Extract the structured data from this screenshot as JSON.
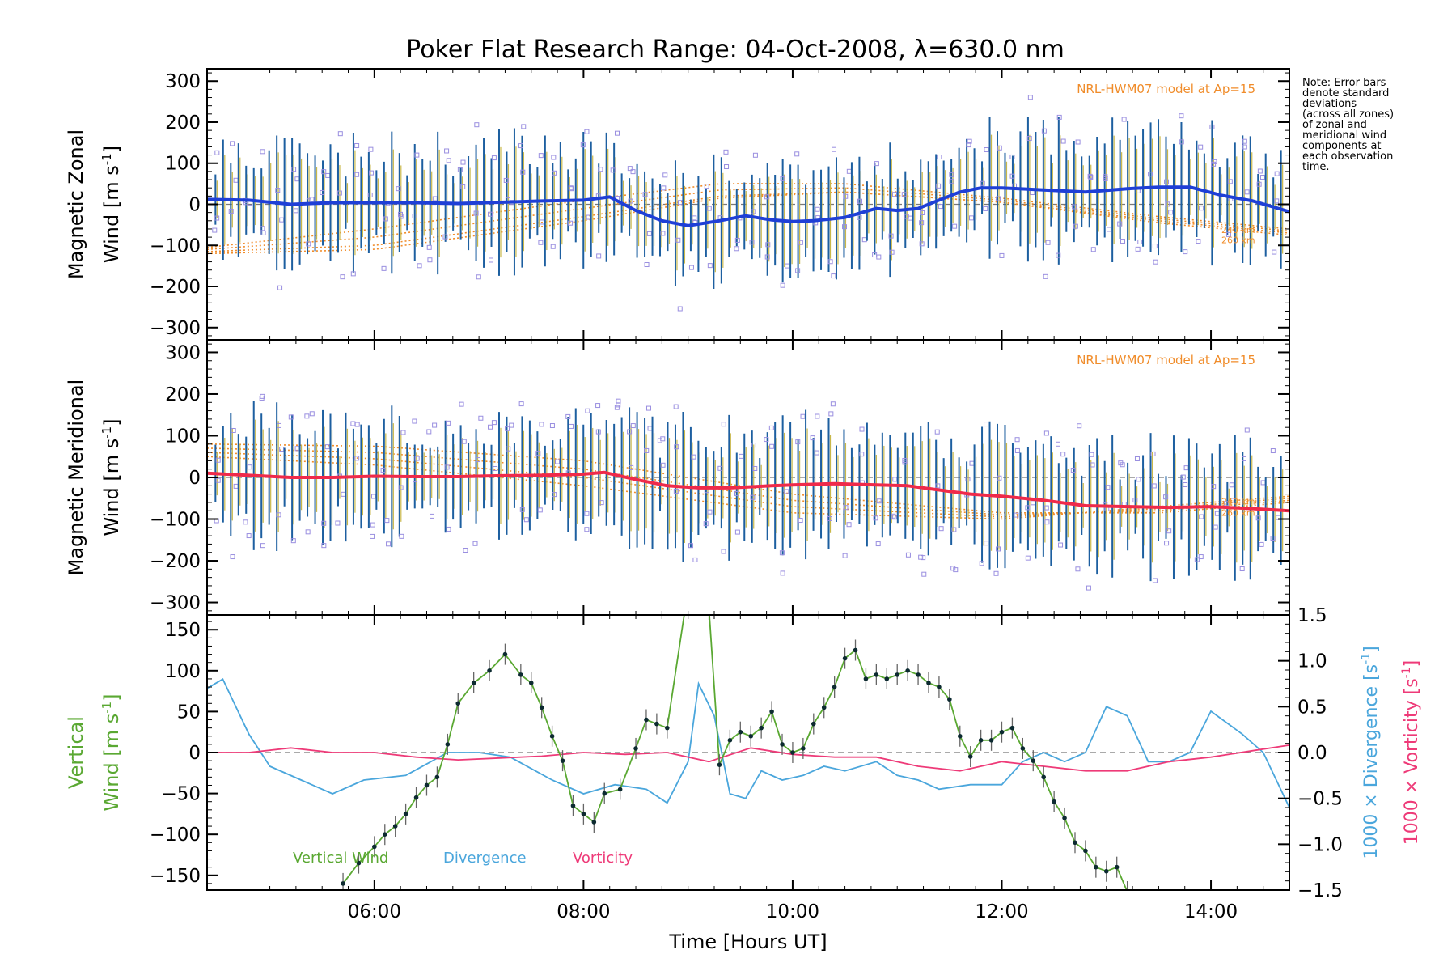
{
  "title": "Poker Flat Research Range: 04-Oct-2008, λ=630.0 nm",
  "note_lines": [
    "Note: Error bars",
    "denote standard",
    "deviations",
    "(across all zones)",
    "of zonal and",
    "meridional wind",
    "components at",
    "each observation",
    "time."
  ],
  "colors": {
    "zonal_line": "#1f3fd6",
    "zonal_fit": "#4fa4dc",
    "meridional_line": "#ef2a4a",
    "meridional_fit": "#ff6b8a",
    "error_bar": "#1d5fa0",
    "model": "#f08c2a",
    "points": "#9a8fe0",
    "vertical": "#5aa832",
    "vertical_points": "#0c2a30",
    "divergence": "#4aa6dc",
    "vorticity": "#ee3a78",
    "zero_line": "#777777"
  },
  "chart_data": [
    {
      "type": "line",
      "panel": "zonal",
      "ylabel_line1": "Magnetic Zonal",
      "ylabel_line2": "Wind [m s",
      "ylabel_sup": "-1",
      "ylabel_close": "]",
      "yticks": [
        "−300",
        "−200",
        "−100",
        "0",
        "100",
        "200",
        "300"
      ],
      "ylim": [
        -330,
        330
      ],
      "xlim": [
        4.4,
        14.75
      ],
      "model_label": "NRL-HWM07 model at Ap=15",
      "model_alt_labels": [
        "240 km",
        "260 km"
      ],
      "series": [
        {
          "x": [
            4.4,
            4.8,
            5.2,
            5.6,
            6.0,
            6.4,
            6.8,
            7.2,
            7.6,
            8.0,
            8.25,
            8.5,
            8.75,
            9.0,
            9.3,
            9.55,
            9.8,
            10.0,
            10.2,
            10.5,
            10.8,
            11.0,
            11.2,
            11.4,
            11.6,
            11.8,
            12.0,
            12.4,
            12.8,
            13.2,
            13.5,
            13.8,
            14.1,
            14.4,
            14.75
          ],
          "y": [
            12,
            10,
            0,
            4,
            4,
            4,
            2,
            5,
            8,
            10,
            18,
            -15,
            -40,
            -52,
            -40,
            -28,
            -38,
            -42,
            -40,
            -32,
            -10,
            -15,
            -10,
            10,
            30,
            40,
            40,
            35,
            30,
            38,
            42,
            42,
            22,
            8,
            -18
          ]
        }
      ],
      "model_curves": [
        {
          "x": [
            4.4,
            6,
            8,
            9.3,
            10.5,
            12,
            13.5,
            14.75
          ],
          "y": [
            -120,
            -110,
            -40,
            15,
            30,
            5,
            -45,
            -75
          ]
        },
        {
          "x": [
            4.4,
            6,
            8,
            9.3,
            10.5,
            12,
            13.5,
            14.75
          ],
          "y": [
            -115,
            -100,
            -30,
            20,
            30,
            5,
            -40,
            -70
          ]
        },
        {
          "x": [
            4.4,
            6,
            8,
            9.3,
            10.5,
            12,
            13.5,
            14.75
          ],
          "y": [
            -110,
            -80,
            -10,
            35,
            40,
            10,
            -35,
            -65
          ]
        },
        {
          "x": [
            4.4,
            6,
            8,
            9.3,
            10.5,
            12,
            13.5,
            14.75
          ],
          "y": [
            -105,
            -60,
            10,
            50,
            50,
            15,
            -30,
            -60
          ]
        }
      ]
    },
    {
      "type": "line",
      "panel": "meridional",
      "ylabel_line1": "Magnetic Meridional",
      "ylabel_line2": "Wind [m s",
      "ylabel_sup": "-1",
      "ylabel_close": "]",
      "yticks": [
        "−300",
        "−200",
        "−100",
        "0",
        "100",
        "200",
        "300"
      ],
      "ylim": [
        -330,
        330
      ],
      "xlim": [
        4.4,
        14.75
      ],
      "model_label": "NRL-HWM07 model at Ap=15",
      "model_alt_labels": [
        "240 km",
        "260 km"
      ],
      "series": [
        {
          "x": [
            4.4,
            4.8,
            5.2,
            5.6,
            6.0,
            6.4,
            6.8,
            7.2,
            7.6,
            8.0,
            8.2,
            8.5,
            8.8,
            9.1,
            9.4,
            9.8,
            10.0,
            10.4,
            10.8,
            11.1,
            11.4,
            11.7,
            12.0,
            12.4,
            12.8,
            13.2,
            13.6,
            14.0,
            14.4,
            14.75
          ],
          "y": [
            10,
            5,
            0,
            0,
            3,
            2,
            2,
            4,
            5,
            8,
            12,
            -5,
            -20,
            -25,
            -25,
            -20,
            -18,
            -15,
            -18,
            -20,
            -30,
            -40,
            -45,
            -55,
            -68,
            -70,
            -72,
            -70,
            -75,
            -80
          ]
        }
      ],
      "model_curves": [
        {
          "x": [
            4.4,
            6,
            8,
            10,
            12,
            13.5,
            14.75
          ],
          "y": [
            80,
            75,
            40,
            -40,
            -85,
            -85,
            -60
          ]
        },
        {
          "x": [
            4.4,
            6,
            8,
            10,
            12,
            13.5,
            14.75
          ],
          "y": [
            70,
            60,
            20,
            -55,
            -90,
            -80,
            -55
          ]
        },
        {
          "x": [
            4.4,
            6,
            8,
            10,
            12,
            13.5,
            14.75
          ],
          "y": [
            60,
            45,
            0,
            -70,
            -95,
            -75,
            -50
          ]
        },
        {
          "x": [
            4.4,
            6,
            8,
            10,
            12,
            13.5,
            14.75
          ],
          "y": [
            50,
            30,
            -20,
            -85,
            -100,
            -70,
            -45
          ]
        }
      ]
    },
    {
      "type": "line",
      "panel": "vertical",
      "ylabel_line1": "Vertical",
      "ylabel_line2": "Wind [m s",
      "ylabel_sup": "-1",
      "ylabel_close": "]",
      "yticks": [
        "−150",
        "−100",
        "−50",
        "0",
        "50",
        "100",
        "150"
      ],
      "ylim": [
        -168,
        168
      ],
      "right_ylim": [
        -1.5,
        1.5
      ],
      "right_yticks": [
        "−1.5",
        "−1.0",
        "−0.5",
        "0.0",
        "0.5",
        "1.0",
        "1.5"
      ],
      "right_label_div": "1000 × Divergence [s",
      "right_label_vort": "1000 × Vorticity [s",
      "right_label_sup": "-1",
      "right_label_close": "]",
      "xlim": [
        4.4,
        14.75
      ],
      "xticks": [
        "06:00",
        "08:00",
        "10:00",
        "12:00",
        "14:00"
      ],
      "xtick_values": [
        6,
        8,
        10,
        12,
        14
      ],
      "xlabel": "Time [Hours UT]",
      "legend": [
        "Vertical Wind",
        "Divergence",
        "Vorticity"
      ],
      "series": [
        {
          "name": "Vertical Wind",
          "x": [
            5.7,
            5.85,
            6.0,
            6.1,
            6.2,
            6.3,
            6.4,
            6.5,
            6.6,
            6.7,
            6.8,
            6.95,
            7.1,
            7.25,
            7.4,
            7.5,
            7.6,
            7.7,
            7.8,
            7.9,
            8.0,
            8.1,
            8.2,
            8.35,
            8.5,
            8.6,
            8.7,
            8.8,
            9.0,
            9.2,
            9.3,
            9.4,
            9.5,
            9.6,
            9.7,
            9.8,
            9.9,
            10.0,
            10.1,
            10.2,
            10.3,
            10.4,
            10.5,
            10.6,
            10.7,
            10.8,
            10.9,
            11.0,
            11.1,
            11.2,
            11.3,
            11.4,
            11.5,
            11.6,
            11.7,
            11.8,
            11.9,
            12.0,
            12.1,
            12.2,
            12.3,
            12.4,
            12.5,
            12.6,
            12.7,
            12.8,
            12.9,
            13.0,
            13.1,
            13.2
          ],
          "y": [
            -160,
            -135,
            -115,
            -100,
            -90,
            -75,
            -55,
            -40,
            -30,
            10,
            60,
            85,
            100,
            120,
            95,
            85,
            55,
            20,
            -10,
            -65,
            -75,
            -85,
            -50,
            -45,
            5,
            40,
            35,
            30,
            200,
            175,
            -15,
            15,
            25,
            20,
            30,
            50,
            10,
            0,
            5,
            35,
            55,
            80,
            115,
            125,
            90,
            95,
            90,
            95,
            100,
            95,
            85,
            80,
            65,
            20,
            -5,
            15,
            15,
            25,
            30,
            5,
            -10,
            -30,
            -60,
            -80,
            -110,
            -120,
            -140,
            -145,
            -140,
            -170
          ]
        },
        {
          "name": "Divergence",
          "x": [
            4.4,
            4.55,
            4.8,
            5.0,
            5.3,
            5.6,
            5.9,
            6.3,
            6.7,
            7.0,
            7.3,
            7.7,
            8.0,
            8.3,
            8.6,
            8.8,
            9.0,
            9.1,
            9.25,
            9.4,
            9.55,
            9.7,
            9.9,
            10.1,
            10.3,
            10.5,
            10.8,
            11.0,
            11.2,
            11.4,
            11.7,
            12.0,
            12.2,
            12.4,
            12.6,
            12.8,
            13.0,
            13.2,
            13.4,
            13.6,
            13.8,
            14.0,
            14.3,
            14.5,
            14.75
          ],
          "y": [
            0.7,
            0.8,
            0.2,
            -0.15,
            -0.3,
            -0.45,
            -0.3,
            -0.25,
            0.0,
            0.0,
            -0.05,
            -0.3,
            -0.45,
            -0.35,
            -0.4,
            -0.55,
            -0.1,
            0.75,
            0.4,
            -0.45,
            -0.5,
            -0.2,
            -0.3,
            -0.25,
            -0.15,
            -0.2,
            -0.1,
            -0.25,
            -0.3,
            -0.4,
            -0.35,
            -0.35,
            -0.1,
            0.0,
            -0.1,
            0.0,
            0.5,
            0.4,
            -0.1,
            -0.1,
            0.0,
            0.45,
            0.2,
            0.0,
            -0.6
          ]
        },
        {
          "name": "Vorticity",
          "x": [
            4.4,
            4.8,
            5.2,
            5.6,
            6.0,
            6.4,
            6.8,
            7.2,
            7.6,
            8.0,
            8.4,
            8.8,
            9.2,
            9.6,
            10.0,
            10.4,
            10.8,
            11.2,
            11.6,
            12.0,
            12.4,
            12.8,
            13.2,
            13.6,
            14.0,
            14.4,
            14.75
          ],
          "y": [
            0.0,
            0.0,
            0.05,
            0.0,
            0.0,
            -0.05,
            -0.08,
            -0.06,
            -0.04,
            0.0,
            -0.02,
            0.0,
            -0.1,
            0.05,
            -0.02,
            -0.05,
            -0.05,
            -0.15,
            -0.2,
            -0.1,
            -0.15,
            -0.2,
            -0.2,
            -0.1,
            -0.05,
            0.02,
            0.08
          ]
        }
      ]
    }
  ]
}
